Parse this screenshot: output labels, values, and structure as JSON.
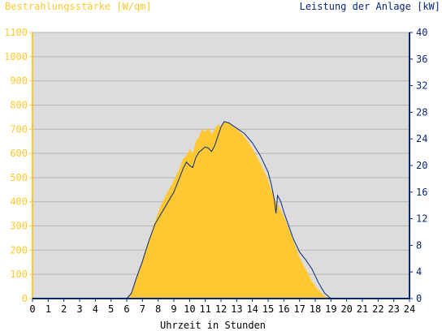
{
  "colors": {
    "irradiance": "#ffc832",
    "power": "#0a2878",
    "plot_bg": "#dcdcdc",
    "grid": "#b4b4b4",
    "axis": "#0a2878"
  },
  "chart_data": {
    "type": "area",
    "title_left": "Bestrahlungsstärke [W/qm]",
    "title_right": "Leistung der Anlage [kW]",
    "xlabel": "Uhrzeit in Stunden",
    "xlim": [
      0,
      24
    ],
    "ylim_left": [
      0,
      1100
    ],
    "ylim_right": [
      0,
      40
    ],
    "x_ticks": [
      "0",
      "1",
      "2",
      "3",
      "4",
      "5",
      "6",
      "7",
      "8",
      "9",
      "10",
      "11",
      "12",
      "13",
      "14",
      "15",
      "16",
      "17",
      "18",
      "19",
      "20",
      "21",
      "22",
      "23",
      "24"
    ],
    "y_left_ticks": [
      "0",
      "100",
      "200",
      "300",
      "400",
      "500",
      "600",
      "700",
      "800",
      "900",
      "1000",
      "1100"
    ],
    "y_right_ticks": [
      "0",
      "4",
      "8",
      "12",
      "16",
      "20",
      "24",
      "28",
      "32",
      "36",
      "40"
    ],
    "grid": true,
    "series": [
      {
        "name": "Bestrahlungsstärke [W/qm]",
        "axis": "left",
        "style": "filled-area",
        "x": [
          0,
          6.0,
          6.3,
          6.6,
          7.0,
          7.4,
          7.8,
          8.2,
          8.6,
          9.0,
          9.3,
          9.6,
          9.8,
          10.0,
          10.2,
          10.4,
          10.6,
          10.8,
          11.0,
          11.2,
          11.4,
          11.6,
          11.8,
          12.0,
          12.2,
          12.5,
          13.0,
          13.5,
          14.0,
          14.5,
          15.0,
          15.3,
          15.5,
          15.7,
          16.0,
          16.3,
          16.6,
          17.0,
          17.4,
          17.8,
          18.2,
          18.6,
          19.0,
          24
        ],
        "y": [
          0,
          0,
          25,
          80,
          160,
          240,
          320,
          390,
          440,
          490,
          530,
          580,
          590,
          620,
          600,
          650,
          670,
          700,
          690,
          705,
          680,
          700,
          720,
          710,
          730,
          725,
          700,
          670,
          620,
          560,
          490,
          430,
          400,
          380,
          340,
          290,
          240,
          170,
          120,
          70,
          35,
          10,
          0,
          0
        ]
      },
      {
        "name": "Leistung der Anlage [kW]",
        "axis": "right",
        "style": "line",
        "x": [
          0,
          6.0,
          6.3,
          6.6,
          7.0,
          7.4,
          7.8,
          8.2,
          8.6,
          9.0,
          9.3,
          9.6,
          9.8,
          10.0,
          10.2,
          10.4,
          10.6,
          10.8,
          11.0,
          11.2,
          11.4,
          11.6,
          11.8,
          12.0,
          12.2,
          12.5,
          13.0,
          13.5,
          14.0,
          14.5,
          15.0,
          15.2,
          15.4,
          15.5,
          15.6,
          15.8,
          16.0,
          16.3,
          16.6,
          17.0,
          17.4,
          17.8,
          18.2,
          18.6,
          19.0,
          24
        ],
        "y": [
          0,
          0,
          0.8,
          3.0,
          5.6,
          8.6,
          11.2,
          12.8,
          14.4,
          16.0,
          17.8,
          19.6,
          20.5,
          20.0,
          19.7,
          21.2,
          22.0,
          22.4,
          22.8,
          22.6,
          22.1,
          23.0,
          24.4,
          25.8,
          26.6,
          26.4,
          25.6,
          24.8,
          23.4,
          21.5,
          19.0,
          17.2,
          14.8,
          12.8,
          15.5,
          14.6,
          13.0,
          11.0,
          9.0,
          7.0,
          5.8,
          4.4,
          2.4,
          0.8,
          0,
          0
        ]
      }
    ]
  }
}
